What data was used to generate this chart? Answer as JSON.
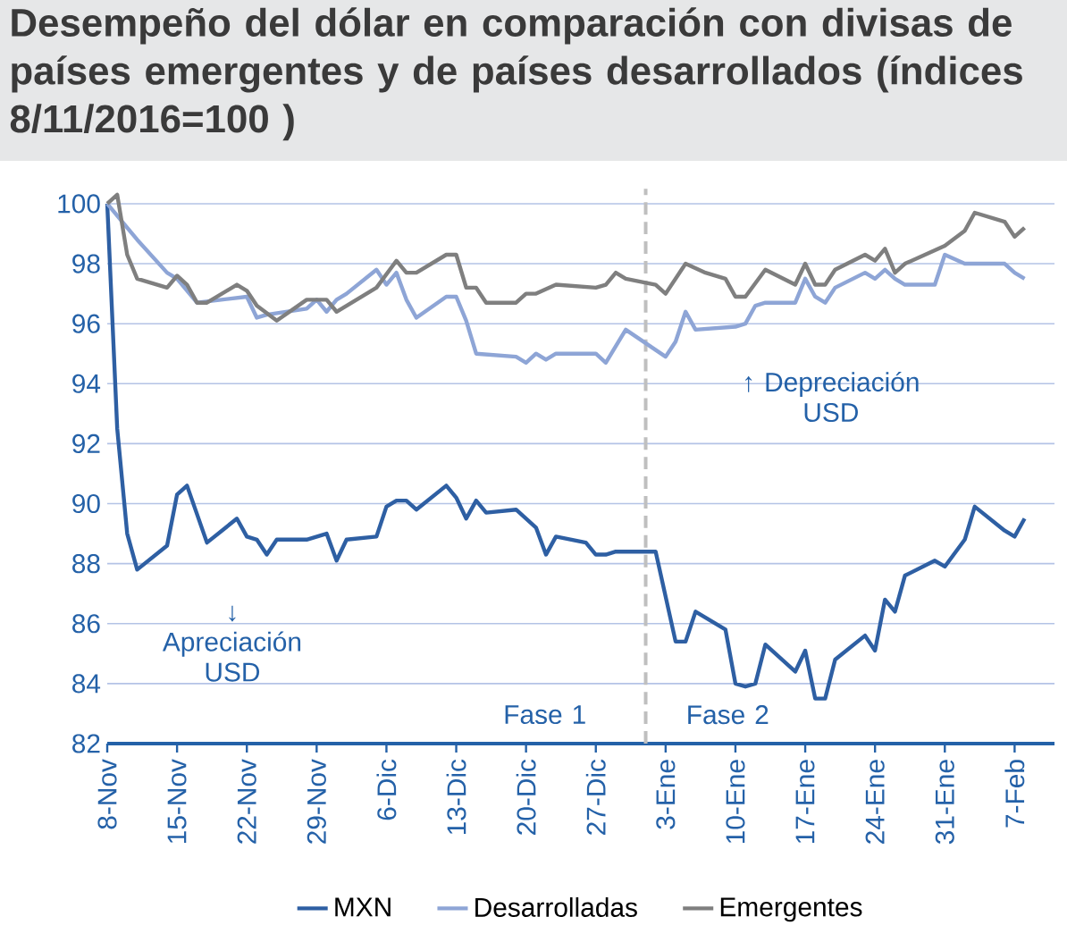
{
  "chart_data": {
    "type": "line",
    "title": "Desempeño del dólar en comparación con divisas de países emergentes y de países desarrollados (índices 8/11/2016=100  )",
    "xlim": [
      "2016-11-08",
      "2017-02-11"
    ],
    "xticks": [
      {
        "value": "2016-11-08",
        "label": "8-Nov"
      },
      {
        "value": "2016-11-15",
        "label": "15-Nov"
      },
      {
        "value": "2016-11-22",
        "label": "22-Nov"
      },
      {
        "value": "2016-11-29",
        "label": "29-Nov"
      },
      {
        "value": "2016-12-06",
        "label": "6-Dic"
      },
      {
        "value": "2016-12-13",
        "label": "13-Dic"
      },
      {
        "value": "2016-12-20",
        "label": "20-Dic"
      },
      {
        "value": "2016-12-27",
        "label": "27-Dic"
      },
      {
        "value": "2017-01-03",
        "label": "3-Ene"
      },
      {
        "value": "2017-01-10",
        "label": "10-Ene"
      },
      {
        "value": "2017-01-17",
        "label": "17-Ene"
      },
      {
        "value": "2017-01-24",
        "label": "24-Ene"
      },
      {
        "value": "2017-01-31",
        "label": "31-Ene"
      },
      {
        "value": "2017-02-07",
        "label": "7-Feb"
      }
    ],
    "ylim": [
      82,
      100.5
    ],
    "yticks": [
      82,
      84,
      86,
      88,
      90,
      92,
      94,
      96,
      98,
      100
    ],
    "grid": "y",
    "legend": "bottom",
    "marker": "none",
    "line_style": "solid",
    "ref_lines": [
      {
        "axis": "x",
        "value": "2017-01-01",
        "color": "#bfbfbf",
        "line_style": "dashed"
      }
    ],
    "annotations": [
      "Fase 1",
      "Fase 2",
      "↓ Apreciación USD",
      "↑ Depreciación USD"
    ],
    "series": [
      {
        "name": "MXN",
        "color": "#2e5fa3",
        "x": [
          "2016-11-08",
          "2016-11-09",
          "2016-11-10",
          "2016-11-11",
          "2016-11-14",
          "2016-11-15",
          "2016-11-16",
          "2016-11-18",
          "2016-11-21",
          "2016-11-22",
          "2016-11-23",
          "2016-11-24",
          "2016-11-25",
          "2016-11-28",
          "2016-11-30",
          "2016-12-01",
          "2016-12-02",
          "2016-12-05",
          "2016-12-06",
          "2016-12-07",
          "2016-12-08",
          "2016-12-09",
          "2016-12-12",
          "2016-12-13",
          "2016-12-14",
          "2016-12-15",
          "2016-12-16",
          "2016-12-19",
          "2016-12-21",
          "2016-12-22",
          "2016-12-23",
          "2016-12-26",
          "2016-12-27",
          "2016-12-28",
          "2016-12-29",
          "2017-01-02",
          "2017-01-04",
          "2017-01-05",
          "2017-01-06",
          "2017-01-09",
          "2017-01-10",
          "2017-01-11",
          "2017-01-12",
          "2017-01-13",
          "2017-01-16",
          "2017-01-17",
          "2017-01-18",
          "2017-01-19",
          "2017-01-20",
          "2017-01-23",
          "2017-01-24",
          "2017-01-25",
          "2017-01-26",
          "2017-01-27",
          "2017-01-30",
          "2017-01-31",
          "2017-02-02",
          "2017-02-03",
          "2017-02-06",
          "2017-02-07",
          "2017-02-08"
        ],
        "values": [
          100.0,
          92.5,
          89.0,
          87.8,
          88.6,
          90.3,
          90.6,
          88.7,
          89.5,
          88.9,
          88.8,
          88.3,
          88.8,
          88.8,
          89.0,
          88.1,
          88.8,
          88.9,
          89.9,
          90.1,
          90.1,
          89.8,
          90.6,
          90.2,
          89.5,
          90.1,
          89.7,
          89.8,
          89.2,
          88.3,
          88.9,
          88.7,
          88.3,
          88.3,
          88.4,
          88.4,
          85.4,
          85.4,
          86.4,
          85.8,
          84.0,
          83.9,
          84.0,
          85.3,
          84.4,
          85.1,
          83.5,
          83.5,
          84.8,
          85.6,
          85.1,
          86.8,
          86.4,
          87.6,
          88.1,
          87.9,
          88.8,
          89.9,
          89.1,
          88.9,
          89.5
        ]
      },
      {
        "name": "Desarrolladas",
        "color": "#8ea5d6",
        "x": [
          "2016-11-08",
          "2016-11-11",
          "2016-11-14",
          "2016-11-15",
          "2016-11-17",
          "2016-11-22",
          "2016-11-23",
          "2016-11-24",
          "2016-11-28",
          "2016-11-29",
          "2016-11-30",
          "2016-12-01",
          "2016-12-02",
          "2016-12-05",
          "2016-12-06",
          "2016-12-07",
          "2016-12-08",
          "2016-12-09",
          "2016-12-12",
          "2016-12-13",
          "2016-12-14",
          "2016-12-15",
          "2016-12-19",
          "2016-12-20",
          "2016-12-21",
          "2016-12-22",
          "2016-12-23",
          "2016-12-27",
          "2016-12-28",
          "2016-12-30",
          "2017-01-03",
          "2017-01-04",
          "2017-01-05",
          "2017-01-06",
          "2017-01-10",
          "2017-01-11",
          "2017-01-12",
          "2017-01-13",
          "2017-01-16",
          "2017-01-17",
          "2017-01-18",
          "2017-01-19",
          "2017-01-20",
          "2017-01-23",
          "2017-01-24",
          "2017-01-25",
          "2017-01-26",
          "2017-01-27",
          "2017-01-30",
          "2017-01-31",
          "2017-02-02",
          "2017-02-06",
          "2017-02-07",
          "2017-02-08"
        ],
        "values": [
          100.0,
          98.8,
          97.7,
          97.5,
          96.7,
          96.9,
          96.2,
          96.3,
          96.5,
          96.8,
          96.4,
          96.8,
          97.0,
          97.8,
          97.3,
          97.7,
          96.8,
          96.2,
          96.9,
          96.9,
          96.1,
          95.0,
          94.9,
          94.7,
          95.0,
          94.8,
          95.0,
          95.0,
          94.7,
          95.8,
          94.9,
          95.4,
          96.4,
          95.8,
          95.9,
          96.0,
          96.6,
          96.7,
          96.7,
          97.5,
          96.9,
          96.7,
          97.2,
          97.7,
          97.5,
          97.8,
          97.5,
          97.3,
          97.3,
          98.3,
          98.0,
          98.0,
          97.7,
          97.5
        ]
      },
      {
        "name": "Emergentes",
        "color": "#7f7f7f",
        "x": [
          "2016-11-08",
          "2016-11-09",
          "2016-11-10",
          "2016-11-11",
          "2016-11-14",
          "2016-11-15",
          "2016-11-16",
          "2016-11-17",
          "2016-11-18",
          "2016-11-21",
          "2016-11-22",
          "2016-11-23",
          "2016-11-25",
          "2016-11-28",
          "2016-11-30",
          "2016-12-01",
          "2016-12-05",
          "2016-12-07",
          "2016-12-08",
          "2016-12-09",
          "2016-12-12",
          "2016-12-13",
          "2016-12-14",
          "2016-12-15",
          "2016-12-16",
          "2016-12-19",
          "2016-12-20",
          "2016-12-21",
          "2016-12-23",
          "2016-12-27",
          "2016-12-28",
          "2016-12-29",
          "2016-12-30",
          "2017-01-02",
          "2017-01-03",
          "2017-01-05",
          "2017-01-07",
          "2017-01-09",
          "2017-01-10",
          "2017-01-11",
          "2017-01-13",
          "2017-01-16",
          "2017-01-17",
          "2017-01-18",
          "2017-01-19",
          "2017-01-20",
          "2017-01-23",
          "2017-01-24",
          "2017-01-25",
          "2017-01-26",
          "2017-01-27",
          "2017-01-31",
          "2017-02-02",
          "2017-02-03",
          "2017-02-06",
          "2017-02-07",
          "2017-02-08"
        ],
        "values": [
          100.0,
          100.3,
          98.3,
          97.5,
          97.2,
          97.6,
          97.3,
          96.7,
          96.7,
          97.3,
          97.1,
          96.6,
          96.1,
          96.8,
          96.8,
          96.4,
          97.2,
          98.1,
          97.7,
          97.7,
          98.3,
          98.3,
          97.2,
          97.2,
          96.7,
          96.7,
          97.0,
          97.0,
          97.3,
          97.2,
          97.3,
          97.7,
          97.5,
          97.3,
          97.0,
          98.0,
          97.7,
          97.5,
          96.9,
          96.9,
          97.8,
          97.3,
          98.0,
          97.3,
          97.3,
          97.8,
          98.3,
          98.1,
          98.5,
          97.7,
          98.0,
          98.6,
          99.1,
          99.7,
          99.4,
          98.9,
          99.2
        ]
      }
    ]
  }
}
